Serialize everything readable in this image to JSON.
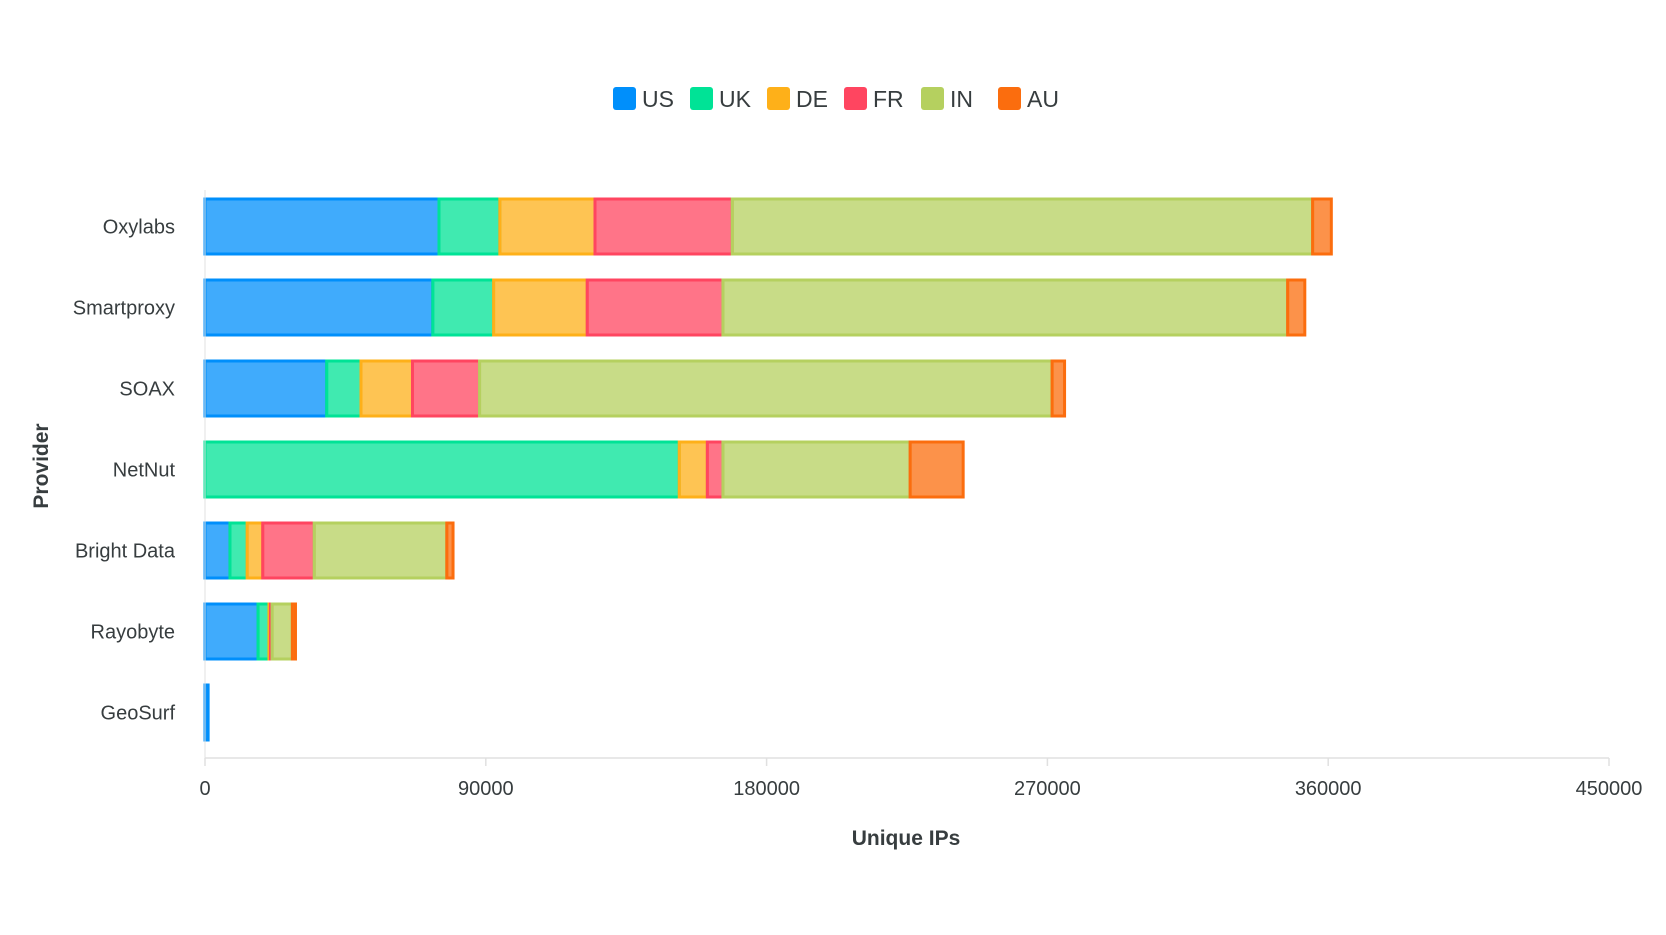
{
  "chart_data": {
    "type": "bar",
    "orientation": "horizontal",
    "stacked": true,
    "categories": [
      "Oxylabs",
      "Smartproxy",
      "SOAX",
      "NetNut",
      "Bright Data",
      "Rayobyte",
      "GeoSurf"
    ],
    "series": [
      {
        "name": "US",
        "color": "#008ffb",
        "values": [
          75000,
          73000,
          39000,
          0,
          8000,
          17000,
          1000
        ]
      },
      {
        "name": "UK",
        "color": "#00e396",
        "values": [
          19500,
          19500,
          11000,
          152000,
          5500,
          3500,
          0
        ]
      },
      {
        "name": "DE",
        "color": "#feb019",
        "values": [
          30500,
          30000,
          16500,
          9000,
          5000,
          500,
          0
        ]
      },
      {
        "name": "FR",
        "color": "#ff4560",
        "values": [
          44000,
          43500,
          21500,
          5000,
          16500,
          500,
          0
        ]
      },
      {
        "name": "IN",
        "color": "#b5d05f",
        "values": [
          186000,
          181000,
          183500,
          60000,
          42500,
          6500,
          0
        ]
      },
      {
        "name": "AU",
        "color": "#fb6d0e",
        "values": [
          6000,
          5500,
          4000,
          17000,
          2000,
          1000,
          0
        ]
      }
    ],
    "xlabel": "Unique IPs",
    "ylabel": "Provider",
    "xlim": [
      0,
      450000
    ],
    "xticks": [
      "0",
      "90000",
      "180000",
      "270000",
      "360000",
      "450000"
    ],
    "legend_position": "top-center",
    "grid": false
  }
}
